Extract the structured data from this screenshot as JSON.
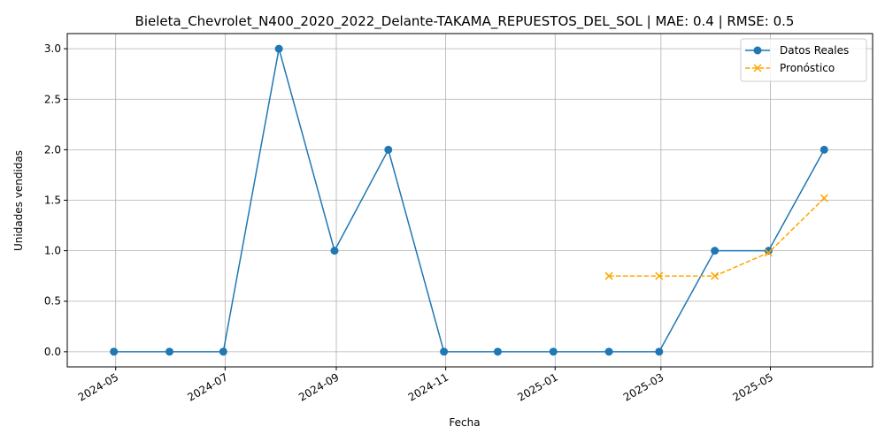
{
  "chart_data": {
    "type": "line",
    "title": "Bieleta_Chevrolet_N400_2020_2022_Delante-TAKAMA_REPUESTOS_DEL_SOL | MAE: 0.4 | RMSE: 0.5",
    "xlabel": "Fecha",
    "ylabel": "Unidades vendidas",
    "ylim": [
      -0.15,
      3.15
    ],
    "xlim": [
      "2024-04-04",
      "2025-06-27"
    ],
    "grid": true,
    "legend_position": "top-right",
    "x_ticks": [
      "2024-05",
      "2024-07",
      "2024-09",
      "2024-11",
      "2025-01",
      "2025-03",
      "2025-05"
    ],
    "y_ticks": [
      "0.0",
      "0.5",
      "1.0",
      "1.5",
      "2.0",
      "2.5",
      "3.0"
    ],
    "series": [
      {
        "name": "Datos Reales",
        "color": "#1f77b4",
        "marker": "circle",
        "line_style": "solid",
        "x": [
          "2024-04-30",
          "2024-05-31",
          "2024-06-30",
          "2024-07-31",
          "2024-08-31",
          "2024-09-30",
          "2024-10-31",
          "2024-11-30",
          "2024-12-31",
          "2025-01-31",
          "2025-02-28",
          "2025-03-31",
          "2025-04-30",
          "2025-05-31"
        ],
        "y": [
          0,
          0,
          0,
          3,
          1,
          2,
          0,
          0,
          0,
          0,
          0,
          1,
          1,
          2
        ]
      },
      {
        "name": "Pronóstico",
        "color": "#ffa500",
        "marker": "x",
        "line_style": "dashed",
        "x": [
          "2025-01-31",
          "2025-02-28",
          "2025-03-31",
          "2025-04-30",
          "2025-05-31"
        ],
        "y": [
          0.75,
          0.75,
          0.75,
          0.98,
          1.52
        ]
      }
    ]
  }
}
